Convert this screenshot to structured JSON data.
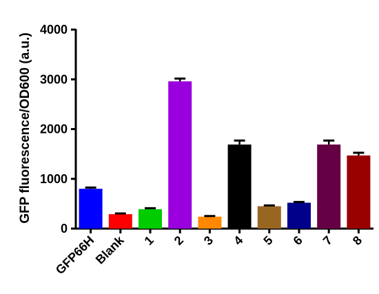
{
  "chart_data": {
    "type": "bar",
    "categories": [
      "GFP66H",
      "Blank",
      "1",
      "2",
      "3",
      "4",
      "5",
      "6",
      "7",
      "8"
    ],
    "values": [
      800,
      290,
      390,
      2960,
      240,
      1690,
      450,
      520,
      1690,
      1470
    ],
    "error": [
      25,
      15,
      20,
      55,
      12,
      80,
      15,
      15,
      80,
      55
    ],
    "colors": [
      "#0000ff",
      "#ff0000",
      "#00cc00",
      "#9900dd",
      "#ff8800",
      "#000000",
      "#996622",
      "#00008b",
      "#660044",
      "#990000"
    ],
    "ylabel": "GFP fluorescence/OD600 (a.u.)",
    "xlabel": "",
    "title": "",
    "ylim": [
      0,
      4000
    ],
    "yticks": [
      0,
      1000,
      2000,
      3000,
      4000
    ],
    "grid": false,
    "legend": "none"
  }
}
